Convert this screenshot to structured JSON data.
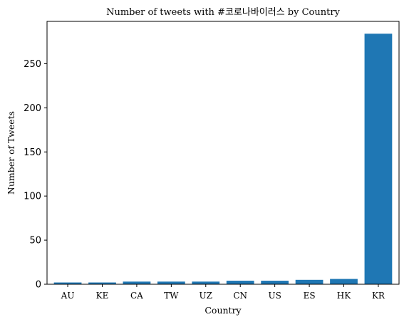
{
  "chart_data": {
    "type": "bar",
    "title": "Number of tweets with #코로나바이러스 by Country",
    "xlabel": "Country",
    "ylabel": "Number of Tweets",
    "categories": [
      "AU",
      "KE",
      "CA",
      "TW",
      "UZ",
      "CN",
      "US",
      "ES",
      "HK",
      "KR"
    ],
    "values": [
      2,
      2,
      3,
      3,
      3,
      4,
      4,
      5,
      6,
      284
    ],
    "ylim": [
      0,
      298
    ],
    "yticks": [
      0,
      50,
      100,
      150,
      200,
      250
    ],
    "grid": false,
    "bar_color": "#1f77b4"
  }
}
